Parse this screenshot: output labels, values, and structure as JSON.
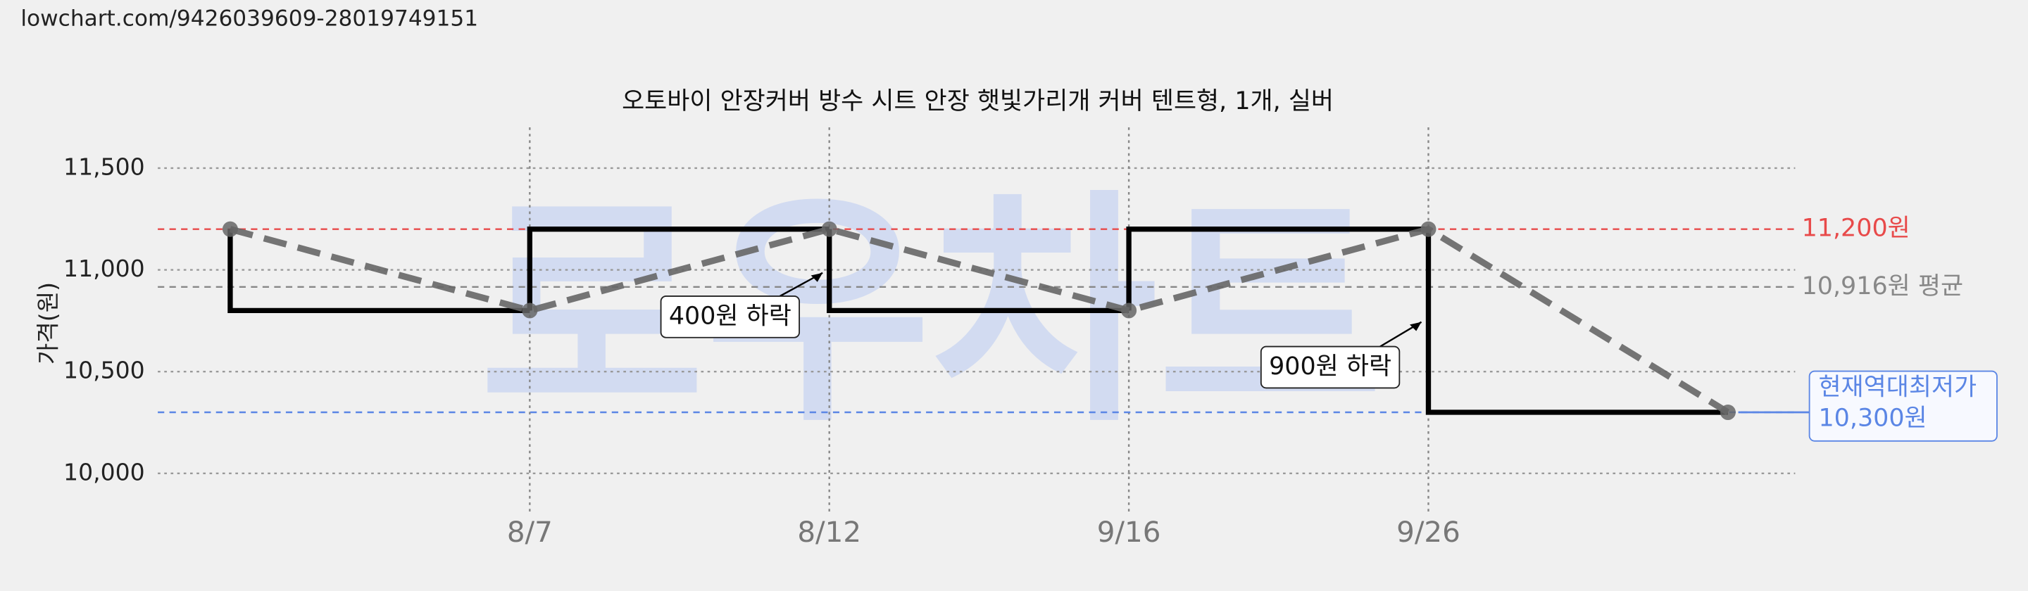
{
  "url": "lowchart.com/9426039609-28019749151",
  "chart_data": {
    "type": "line",
    "title": "오토바이 안장커버 방수 시트 안장 햇빛가리개 커버 텐트형, 1개, 실버",
    "watermark": "로우차트",
    "ylabel": "가격(원)",
    "categories": [
      null,
      "8/7",
      "8/12",
      "9/16",
      "9/26",
      null
    ],
    "values": [
      11200,
      10800,
      11200,
      10800,
      11200,
      10300
    ],
    "color": "#666666",
    "step_color": "#000000",
    "ylim": [
      9800,
      11700
    ],
    "yticks": [
      {
        "value": 10000,
        "label": "10,000"
      },
      {
        "value": 10500,
        "label": "10,500"
      },
      {
        "value": 11000,
        "label": "11,000"
      },
      {
        "value": 11500,
        "label": "11,500"
      }
    ],
    "grid": true,
    "reference_lines": [
      {
        "value": 11200,
        "label": "11,200원",
        "color": "#e84a4a"
      },
      {
        "value": 10916,
        "label": "10,916원 평균",
        "color": "#888888"
      },
      {
        "value": 10300,
        "title": "현재역대최저가",
        "label": "10,300원",
        "color": "#5b86e5"
      }
    ],
    "annotations": [
      "400원 하락",
      "900원 하락"
    ]
  }
}
